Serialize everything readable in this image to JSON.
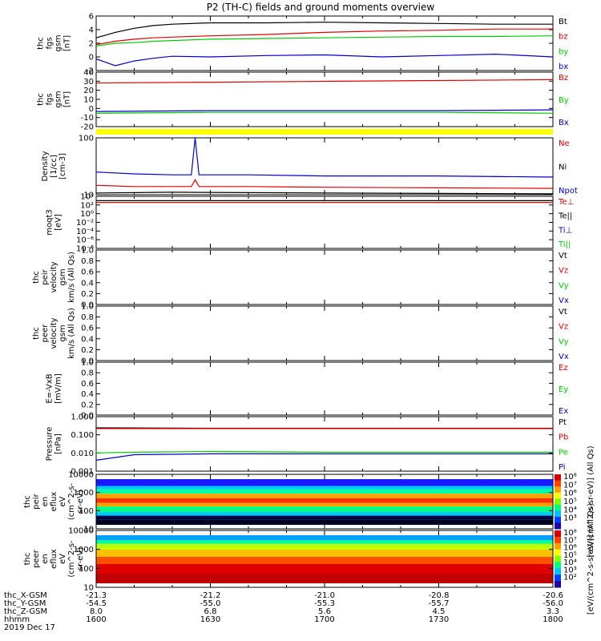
{
  "title": "P2 (TH-C) fields and ground moments overview",
  "colors": {
    "black": "#000000",
    "red": "#e00000",
    "green": "#00cc00",
    "blue": "#0000cc",
    "yellow": "#ffff00"
  },
  "chart_data": [
    {
      "type": "line",
      "ylabel": [
        "thc",
        "fgs",
        "gsm",
        "[nT]"
      ],
      "yticks": [
        "6",
        "4",
        "2",
        "0",
        "-2"
      ],
      "ylim": [
        -2,
        6
      ],
      "legend": [
        "Bt",
        "bz",
        "by",
        "bx"
      ],
      "series": [
        {
          "name": "Bt",
          "x": [
            1600,
            1605,
            1610,
            1615,
            1620,
            1630,
            1645,
            1700,
            1715,
            1730,
            1745,
            1800
          ],
          "values": [
            2.8,
            3.6,
            4.2,
            4.6,
            4.8,
            5.0,
            5.0,
            5.1,
            5.0,
            4.9,
            4.8,
            4.8
          ]
        },
        {
          "name": "bz",
          "x": [
            1600,
            1605,
            1610,
            1615,
            1620,
            1630,
            1645,
            1700,
            1715,
            1730,
            1745,
            1800
          ],
          "values": [
            1.8,
            2.3,
            2.6,
            2.8,
            2.9,
            3.1,
            3.3,
            3.6,
            3.8,
            3.9,
            4.1,
            4.1
          ]
        },
        {
          "name": "by",
          "x": [
            1600,
            1605,
            1610,
            1615,
            1620,
            1630,
            1645,
            1700,
            1715,
            1730,
            1745,
            1800
          ],
          "values": [
            1.6,
            2.0,
            2.1,
            2.3,
            2.4,
            2.6,
            2.7,
            2.8,
            2.9,
            3.0,
            3.0,
            3.1
          ]
        },
        {
          "name": "bx",
          "x": [
            1600,
            1605,
            1610,
            1615,
            1620,
            1630,
            1645,
            1700,
            1715,
            1730,
            1745,
            1800
          ],
          "values": [
            -0.3,
            -1.3,
            -0.6,
            -0.2,
            0.1,
            0.0,
            0.2,
            0.3,
            0.0,
            0.2,
            0.4,
            0.0
          ]
        }
      ]
    },
    {
      "type": "line",
      "ylabel": [
        "thc",
        "fgs",
        "gsm",
        "[nT]"
      ],
      "yticks": [
        "40",
        "30",
        "20",
        "10",
        "0",
        "-10",
        "-20"
      ],
      "ylim": [
        -25,
        40
      ],
      "legend": [
        "Bz",
        "By",
        "Bx"
      ],
      "series": [
        {
          "name": "Bz",
          "x": [
            1600,
            1630,
            1700,
            1730,
            1800
          ],
          "values": [
            27,
            28,
            29,
            30,
            31
          ]
        },
        {
          "name": "By",
          "x": [
            1600,
            1630,
            1700,
            1730,
            1800
          ],
          "values": [
            -9,
            -8,
            -8,
            -8,
            -9
          ]
        },
        {
          "name": "Bx",
          "x": [
            1600,
            1630,
            1700,
            1730,
            1800
          ],
          "values": [
            -7,
            -6,
            -6,
            -6,
            -5
          ]
        }
      ]
    },
    {
      "type": "line",
      "scale": "log",
      "ylabel": [
        "Density",
        "[1/cc]",
        "[cm-3]"
      ],
      "yticks": [
        "100",
        "10"
      ],
      "ylim": [
        3,
        200
      ],
      "legend": [
        "Ne",
        "Ni",
        "Npot"
      ],
      "series": [
        {
          "name": "Npot",
          "x": [
            1600,
            1610,
            1620,
            1625,
            1626,
            1627,
            1640,
            1700,
            1730,
            1800
          ],
          "values": [
            16,
            14,
            13,
            13,
            200,
            13,
            13,
            12,
            12,
            11
          ]
        },
        {
          "name": "Ne",
          "x": [
            1600,
            1610,
            1620,
            1625,
            1626,
            1627,
            1640,
            1700,
            1730,
            1800
          ],
          "values": [
            6,
            5.5,
            5.5,
            5.5,
            9,
            5.5,
            5.5,
            5.2,
            5.0,
            4.8
          ]
        },
        {
          "name": "Ni",
          "x": [
            1600,
            1610,
            1620,
            1640,
            1700,
            1730,
            1800
          ],
          "values": [
            3.4,
            3.5,
            3.6,
            3.5,
            3.4,
            3.3,
            3.2
          ]
        }
      ]
    },
    {
      "type": "line",
      "scale": "log",
      "ylabel": [
        "moqt3",
        "[eV]"
      ],
      "yticks": [
        "10⁴",
        "10²",
        "10⁰",
        "10⁻²",
        "10⁻⁴",
        "10⁻⁶",
        "10⁻⁸"
      ],
      "ylim": [
        1e-08,
        10000
      ],
      "legend": [
        "Te⊥",
        "Te||",
        "Ti⊥",
        "Ti||"
      ],
      "series": [
        {
          "name": "Te⊥",
          "x": [
            1600,
            1800
          ],
          "values": [
            400,
            400
          ]
        },
        {
          "name": "Te||",
          "x": [
            1600,
            1800
          ],
          "values": [
            1000,
            1000
          ]
        }
      ]
    },
    {
      "type": "line",
      "ylabel": [
        "thc",
        "peir",
        "velocity",
        "gsm",
        "km/s (All Qs)"
      ],
      "yticks": [
        "1.0",
        "0.8",
        "0.6",
        "0.4",
        "0.2",
        "0.0"
      ],
      "ylim": [
        0,
        1
      ],
      "legend": [
        "Vt",
        "Vz",
        "Vy",
        "Vx"
      ],
      "series": []
    },
    {
      "type": "line",
      "ylabel": [
        "thc",
        "peer",
        "velocity",
        "gsm",
        "km/s (All Qs)"
      ],
      "yticks": [
        "1.0",
        "0.8",
        "0.6",
        "0.4",
        "0.2",
        "0.0"
      ],
      "ylim": [
        0,
        1
      ],
      "legend": [
        "Vt",
        "Vz",
        "Vy",
        "Vx"
      ],
      "series": []
    },
    {
      "type": "line",
      "ylabel": [
        "E=-VxB",
        "[mV/m]"
      ],
      "yticks": [
        "1.0",
        "0.8",
        "0.6",
        "0.4",
        "0.2",
        "0.0"
      ],
      "ylim": [
        0,
        1
      ],
      "legend": [
        "Ez",
        "Ey",
        "Ex"
      ],
      "series": []
    },
    {
      "type": "line",
      "scale": "log",
      "ylabel": [
        "Pressure",
        "[nPa]"
      ],
      "yticks": [
        "1.000",
        "0.100",
        "0.010",
        "0.001"
      ],
      "ylim": [
        0.001,
        1
      ],
      "legend": [
        "Pt",
        "Pb",
        "Pe",
        "Pi"
      ],
      "series": [
        {
          "name": "Pt",
          "x": [
            1600,
            1630,
            1700,
            1730,
            1800
          ],
          "values": [
            0.24,
            0.23,
            0.23,
            0.23,
            0.23
          ]
        },
        {
          "name": "Pb",
          "x": [
            1600,
            1630,
            1700,
            1730,
            1800
          ],
          "values": [
            0.22,
            0.22,
            0.22,
            0.22,
            0.22
          ]
        },
        {
          "name": "Pe",
          "x": [
            1600,
            1610,
            1630,
            1700,
            1730,
            1800
          ],
          "values": [
            0.01,
            0.011,
            0.012,
            0.011,
            0.011,
            0.011
          ]
        },
        {
          "name": "Pi",
          "x": [
            1600,
            1610,
            1630,
            1700,
            1730,
            1800
          ],
          "values": [
            0.004,
            0.008,
            0.009,
            0.009,
            0.009,
            0.009
          ]
        }
      ]
    },
    {
      "type": "heatmap",
      "scale": "log",
      "ylabel": [
        "thc",
        "peir",
        "en",
        "eflux",
        "eV",
        "(cm^2-s-",
        "sr-eV)"
      ],
      "yticks": [
        "10000",
        "1000",
        "100",
        "10"
      ],
      "ylim": [
        5,
        20000
      ],
      "colorbar": {
        "ticks": [
          "10⁸",
          "10⁷",
          "10⁶",
          "10⁵",
          "10⁴",
          "10³"
        ],
        "label": "[eV/(cm^2-s-sr-eV)] (All Qs)"
      }
    },
    {
      "type": "heatmap",
      "scale": "log",
      "ylabel": [
        "thc",
        "peer",
        "en",
        "eflux",
        "eV",
        "(cm^2-s-",
        "sr-eV)"
      ],
      "yticks": [
        "10000",
        "1000",
        "100",
        "10"
      ],
      "ylim": [
        5,
        20000
      ],
      "colorbar": {
        "ticks": [
          "10⁸",
          "10⁷",
          "10⁶",
          "10⁵",
          "10⁴",
          "10³",
          "10²"
        ],
        "label": "[eV/(cm^2-s-sr-eV)] (All Qs)"
      }
    }
  ],
  "xaxis": {
    "rows": [
      {
        "label": "thc_X-GSM",
        "values": [
          "-21.3",
          "-21.2",
          "-21.0",
          "-20.8",
          "-20.6"
        ]
      },
      {
        "label": "thc_Y-GSM",
        "values": [
          "-54.5",
          "-55.0",
          "-55.3",
          "-55.7",
          "-56.0"
        ]
      },
      {
        "label": "thc_Z-GSM",
        "values": [
          "8.0",
          "6.8",
          "5.6",
          "4.5",
          "3.3"
        ]
      },
      {
        "label": "hhmm",
        "values": [
          "1600",
          "1630",
          "1700",
          "1730",
          "1800"
        ]
      }
    ],
    "date": "2019 Dec 17"
  }
}
